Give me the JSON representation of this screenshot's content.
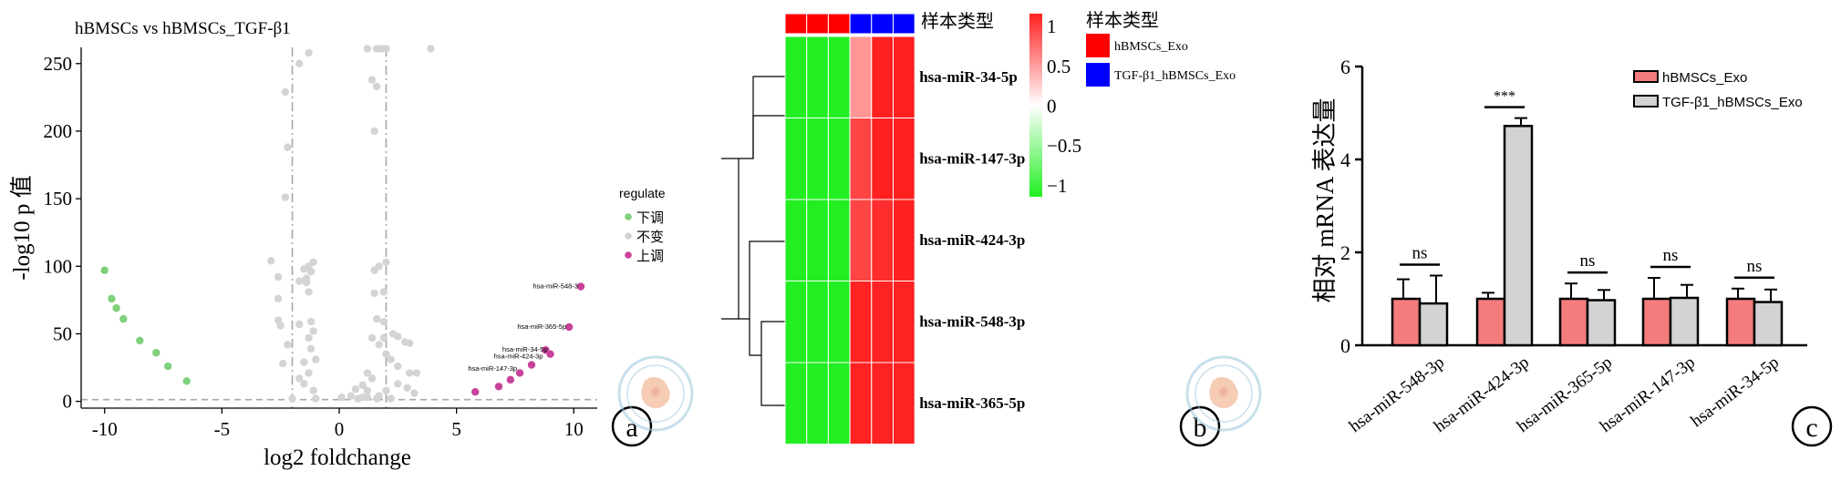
{
  "colors": {
    "down": "#7ed07b",
    "unchanged": "#d4d4d4",
    "up": "#c8429a",
    "hm_low": "#22ee22",
    "hm_high": "#ff2020",
    "group1": "#ff0000",
    "group2": "#0000ff",
    "bar1": "#f47c7c",
    "bar2": "#d3d3d3"
  },
  "chart_data": [
    {
      "type": "scatter",
      "panel_label": "a",
      "title": "hBMSCs vs hBMSCs_TGF-β1",
      "xlabel": "log2 foldchange",
      "ylabel": "-log10 p 值",
      "xlim": [
        -11,
        11
      ],
      "ylim": [
        -5,
        262
      ],
      "x_ticks": [
        -10,
        -5,
        0,
        5,
        10
      ],
      "y_ticks": [
        0,
        50,
        100,
        150,
        200,
        250
      ],
      "thresholds": {
        "x": [
          -2,
          2
        ],
        "y": 1.3
      },
      "legend_title": "regulate",
      "legend_position": "right",
      "series": [
        {
          "name": "下调",
          "color_key": "down",
          "points": [
            [
              -10,
              97
            ],
            [
              -9.7,
              76
            ],
            [
              -9.5,
              69
            ],
            [
              -9.2,
              61
            ],
            [
              -8.5,
              45
            ],
            [
              -7.8,
              36
            ],
            [
              -7.3,
              26
            ],
            [
              -6.5,
              15
            ]
          ]
        },
        {
          "name": "不变",
          "color_key": "unchanged",
          "points": [
            [
              -2.3,
              229
            ],
            [
              -2.3,
              151
            ],
            [
              -2.2,
              188
            ],
            [
              -1.7,
              250
            ],
            [
              -1.3,
              258
            ],
            [
              -2.0,
              2
            ],
            [
              -1.0,
              2
            ],
            [
              0.1,
              3
            ],
            [
              0.5,
              4
            ],
            [
              1.2,
              3
            ],
            [
              1.6,
              2
            ],
            [
              1.7,
              4
            ],
            [
              -2.9,
              104
            ],
            [
              -2.6,
              92
            ],
            [
              -2.6,
              76
            ],
            [
              -2.6,
              60
            ],
            [
              -2.5,
              56
            ],
            [
              -2.4,
              28
            ],
            [
              -2.2,
              42
            ],
            [
              -1.7,
              89
            ],
            [
              -1.7,
              57
            ],
            [
              -1.5,
              98
            ],
            [
              -1.4,
              91
            ],
            [
              -1.4,
              88
            ],
            [
              -1.3,
              81
            ],
            [
              -1.3,
              100
            ],
            [
              -1.2,
              96
            ],
            [
              -1.1,
              103
            ],
            [
              -1.2,
              59
            ],
            [
              -1.1,
              52
            ],
            [
              -1.3,
              47
            ],
            [
              -1.5,
              29
            ],
            [
              -1.2,
              39
            ],
            [
              -1.3,
              21
            ],
            [
              -1.0,
              31
            ],
            [
              -1.7,
              17
            ],
            [
              -1.5,
              13
            ],
            [
              -1.1,
              8
            ],
            [
              1.5,
              200
            ],
            [
              1.6,
              233
            ],
            [
              1.4,
              238
            ],
            [
              1.6,
              261
            ],
            [
              1.8,
              261
            ],
            [
              1.5,
              97
            ],
            [
              1.7,
              100
            ],
            [
              1.9,
              81
            ],
            [
              2.0,
              103
            ],
            [
              1.5,
              80
            ],
            [
              1.6,
              61
            ],
            [
              1.9,
              59
            ],
            [
              1.4,
              47
            ],
            [
              1.7,
              42
            ],
            [
              1.9,
              47
            ],
            [
              2.0,
              35
            ],
            [
              2.3,
              50
            ],
            [
              2.5,
              48
            ],
            [
              2.8,
              44
            ],
            [
              3.0,
              43
            ],
            [
              2.2,
              31
            ],
            [
              2.5,
              26
            ],
            [
              3.0,
              21
            ],
            [
              3.3,
              21
            ],
            [
              2.9,
              10
            ],
            [
              3.2,
              6
            ],
            [
              1.2,
              21
            ],
            [
              1.4,
              17
            ],
            [
              1.0,
              12
            ],
            [
              1.2,
              8
            ],
            [
              1.0,
              3
            ],
            [
              0.7,
              9
            ],
            [
              0.8,
              2
            ],
            [
              2.0,
              8
            ],
            [
              2.2,
              2
            ],
            [
              2.5,
              13
            ],
            [
              3.9,
              261
            ],
            [
              1.2,
              261
            ],
            [
              2.0,
              261
            ]
          ]
        },
        {
          "name": "上调",
          "color_key": "up",
          "points": [
            [
              5.8,
              7
            ],
            [
              6.8,
              11
            ],
            [
              7.3,
              16
            ],
            [
              7.7,
              21
            ],
            [
              8.2,
              27
            ],
            [
              8.8,
              38
            ],
            [
              9.0,
              35
            ],
            [
              9.8,
              55
            ],
            [
              10.3,
              85
            ]
          ]
        }
      ],
      "annotations": [
        {
          "text": "hsa-miR-548-3",
          "x": 10.3,
          "y": 85
        },
        {
          "text": "hsa-miR-365-5p",
          "x": 9.8,
          "y": 55
        },
        {
          "text": "hsa-miR-34-5p",
          "x": 9.0,
          "y": 38
        },
        {
          "text": "hsa-miR-424-3p",
          "x": 8.8,
          "y": 33
        },
        {
          "text": "hsa-miR-147-3p",
          "x": 7.7,
          "y": 24
        }
      ]
    },
    {
      "type": "heatmap",
      "panel_label": "b",
      "annotation_title": "样本类型",
      "rows": [
        "hsa-miR-34-5p",
        "hsa-miR-147-3p",
        "hsa-miR-424-3p",
        "hsa-miR-548-3p",
        "hsa-miR-365-5p"
      ],
      "column_groups": [
        "hBMSCs_Exo",
        "hBMSCs_Exo",
        "hBMSCs_Exo",
        "TGF-β1_hBMSCs_Exo",
        "TGF-β1_hBMSCs_Exo",
        "TGF-β1_hBMSCs_Exo"
      ],
      "values": [
        [
          -1.0,
          -1.0,
          -1.0,
          0.45,
          1.1,
          1.1
        ],
        [
          -1.0,
          -1.0,
          -1.0,
          0.8,
          1.1,
          1.1
        ],
        [
          -1.0,
          -1.0,
          -1.0,
          0.8,
          0.9,
          1.15
        ],
        [
          -1.0,
          -1.0,
          -1.0,
          0.95,
          0.95,
          0.95
        ],
        [
          -1.0,
          -1.0,
          -1.0,
          0.95,
          0.95,
          0.95
        ]
      ],
      "colorbar_ticks": [
        1,
        0.5,
        0,
        -0.5,
        -1
      ],
      "colorbar_labels": [
        "1",
        "0.5",
        "0",
        "−0.5",
        "−1"
      ],
      "legend_title": "样本类型",
      "legend_entries": [
        {
          "label": "hBMSCs_Exo",
          "color_key": "group1"
        },
        {
          "label": "TGF-β1_hBMSCs_Exo",
          "color_key": "group2"
        }
      ]
    },
    {
      "type": "bar",
      "panel_label": "c",
      "xlabel": "",
      "ylabel": "相对 mRNA 表达量",
      "ylim": [
        0,
        6
      ],
      "y_ticks": [
        0,
        2,
        4,
        6
      ],
      "categories": [
        "hsa-miR-548-3p",
        "hsa-miR-424-3p",
        "hsa-miR-365-5p",
        "hsa-miR-147-3p",
        "hsa-miR-34-5p"
      ],
      "series": [
        {
          "name": "hBMSCs_Exo",
          "color_key": "bar1",
          "values": [
            1,
            1,
            1,
            1,
            1
          ],
          "errors": [
            0.42,
            0.13,
            0.33,
            0.45,
            0.22
          ]
        },
        {
          "name": "TGF-β1_hBMSCs_Exo",
          "color_key": "bar2",
          "values": [
            0.9,
            4.72,
            0.97,
            1.02,
            0.93
          ],
          "errors": [
            0.6,
            0.17,
            0.22,
            0.28,
            0.27
          ]
        }
      ],
      "significance": [
        "ns",
        "***",
        "ns",
        "ns",
        "ns"
      ],
      "legend_position": "top-right"
    }
  ]
}
